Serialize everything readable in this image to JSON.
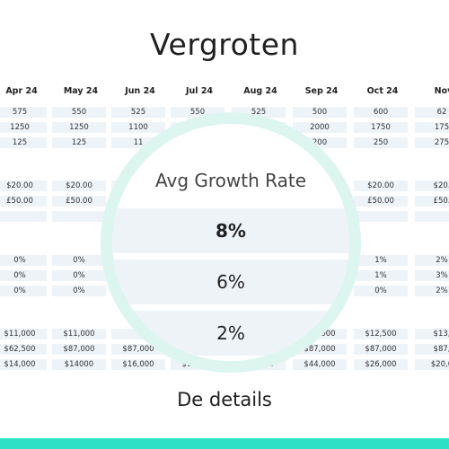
{
  "title": "Vergroten",
  "months": [
    "Apr 24",
    "May 24",
    "Jun 24",
    "Jul 24",
    "Aug 24",
    "Sep 24",
    "Oct 24",
    "Nov"
  ],
  "rows": [
    [
      "575",
      "550",
      "525",
      "550",
      "525",
      "500",
      "600",
      "62"
    ],
    [
      "1250",
      "1250",
      "1100",
      "",
      "",
      "2000",
      "1750",
      "175"
    ],
    [
      "125",
      "125",
      "11",
      "",
      "",
      "200",
      "250",
      "275"
    ],
    null,
    [
      "$20.00",
      "$20.00",
      "",
      "",
      "",
      "",
      "$20.00",
      "$20."
    ],
    [
      "£50.00",
      "£50.00",
      "",
      "",
      "",
      "",
      "£50.00",
      "£50."
    ],
    [],
    null,
    [
      "0%",
      "0%",
      "",
      "",
      "",
      "",
      "1%",
      "2%"
    ],
    [
      "0%",
      "0%",
      "",
      "",
      "",
      "",
      "1%",
      "3%"
    ],
    [
      "0%",
      "0%",
      "",
      "",
      "",
      "",
      "0%",
      "2%"
    ],
    null,
    [
      "$11,000",
      "$11,000",
      "",
      "",
      "",
      "$12,000",
      "$12,500",
      "$13,"
    ],
    [
      "$62,500",
      "$87,000",
      "$87,000",
      "",
      "",
      "$87,000",
      "$87,000",
      "$87,"
    ],
    [
      "$14,000",
      "$14000",
      "$16,000",
      "$12,000",
      "$27,000",
      "$44,000",
      "$26,000",
      "$20,0"
    ]
  ],
  "lens": {
    "title": "Avg Growth Rate",
    "values": [
      "8%",
      "6%",
      "2%"
    ]
  },
  "footer": "De details"
}
